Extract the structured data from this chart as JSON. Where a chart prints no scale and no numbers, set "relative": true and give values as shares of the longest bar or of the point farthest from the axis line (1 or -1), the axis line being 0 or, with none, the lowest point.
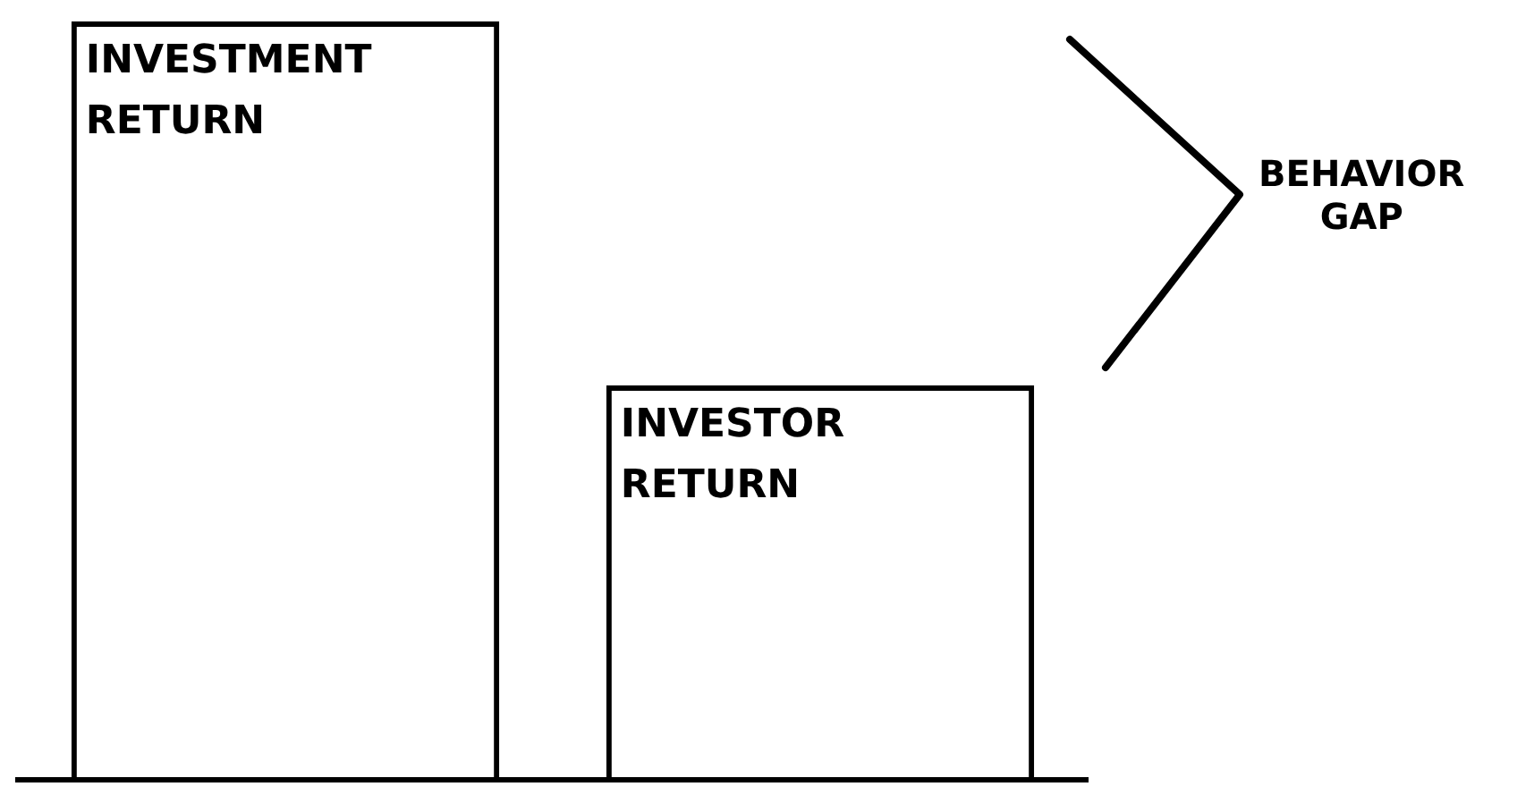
{
  "chart_data": {
    "type": "bar",
    "relative": true,
    "categories": [
      "INVESTMENT RETURN",
      "INVESTOR RETURN"
    ],
    "values": [
      1,
      0.52
    ],
    "color": "#000000",
    "annotations": [
      "BEHAVIOR GAP"
    ],
    "grid": false,
    "legend": false
  }
}
